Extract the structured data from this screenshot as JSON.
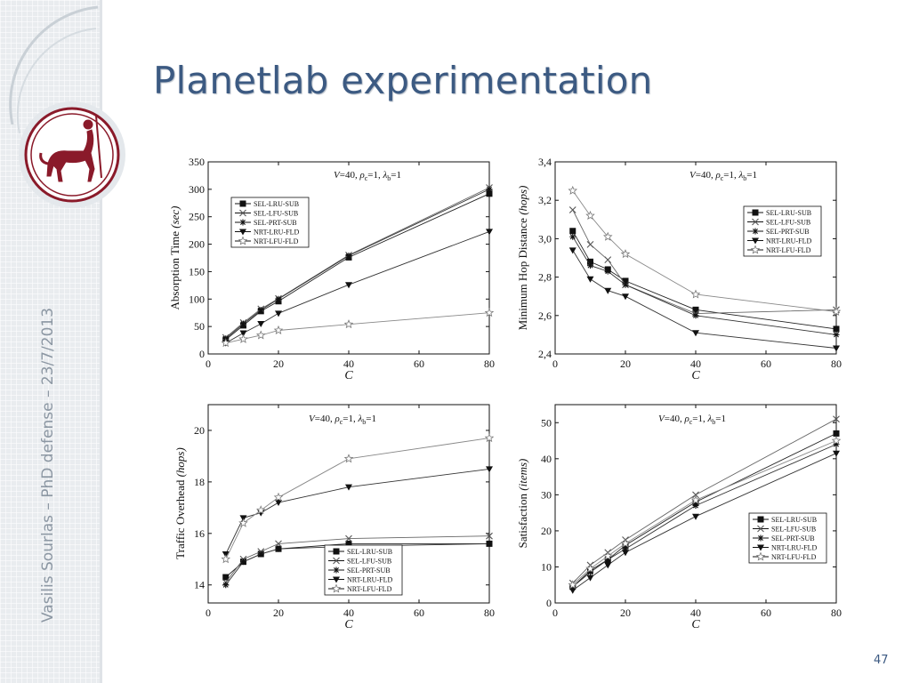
{
  "slide": {
    "title": "Planetlab experimentation",
    "footer": "Vasilis Sourlas – PhD defense – 23/7/2013",
    "page_number": "47"
  },
  "colors": {
    "title": "#3c5a82",
    "footer": "#8c97a3",
    "logo": "#8a1a2a"
  },
  "logo": {
    "icon": "centaur-seal-icon"
  },
  "series_names": [
    "SEL-LRU-SUB",
    "SEL-LFU-SUB",
    "SEL-PRT-SUB",
    "NRT-LRU-FLD",
    "NRT-LFU-FLD"
  ],
  "chart_data": [
    {
      "type": "line",
      "label": "V=40, ρc=1, λb=1",
      "title_text": {
        "v": "V",
        "v_eq": "=40, ",
        "rho": "ρ",
        "rho_sub": "c",
        "rho_eq": "=1, ",
        "lam": "λ",
        "lam_sub": "b",
        "lam_eq": "=1"
      },
      "xlabel": "C",
      "ylabel_main": "Absorption Time",
      "ylabel_unit": "(sec)",
      "x": [
        5,
        10,
        15,
        20,
        40,
        80
      ],
      "xlim": [
        0,
        80
      ],
      "ylim": [
        0,
        350
      ],
      "xticks": [
        "0",
        "20",
        "40",
        "60",
        "80"
      ],
      "yticks": [
        "0",
        "50",
        "100",
        "150",
        "200",
        "250",
        "300",
        "350"
      ],
      "legend_position": "upper-left",
      "series": [
        {
          "name": "SEL-LRU-SUB",
          "values": [
            26,
            52,
            78,
            96,
            176,
            292
          ]
        },
        {
          "name": "SEL-LFU-SUB",
          "values": [
            30,
            57,
            82,
            101,
            180,
            303
          ]
        },
        {
          "name": "SEL-PRT-SUB",
          "values": [
            28,
            55,
            80,
            100,
            179,
            300
          ]
        },
        {
          "name": "NRT-LRU-FLD",
          "values": [
            20,
            38,
            55,
            74,
            126,
            223
          ]
        },
        {
          "name": "NRT-LFU-FLD",
          "values": [
            20,
            27,
            34,
            43,
            54,
            75
          ]
        }
      ]
    },
    {
      "type": "line",
      "label": "V=40, ρc=1, λb=1",
      "title_text": {
        "v": "V",
        "v_eq": "=40, ",
        "rho": "ρ",
        "rho_sub": "c",
        "rho_eq": "=1, ",
        "lam": "λ",
        "lam_sub": "b",
        "lam_eq": "=1"
      },
      "xlabel": "C",
      "ylabel_main": "Minimum Hop Distance",
      "ylabel_unit": "(hops)",
      "x": [
        5,
        10,
        15,
        20,
        40,
        80
      ],
      "xlim": [
        0,
        80
      ],
      "ylim": [
        2.4,
        3.4
      ],
      "xticks": [
        "0",
        "20",
        "40",
        "60",
        "80"
      ],
      "yticks": [
        "2,4",
        "2,6",
        "2,8",
        "3,0",
        "3,2",
        "3,4"
      ],
      "legend_position": "upper-right",
      "series": [
        {
          "name": "SEL-LRU-SUB",
          "values": [
            3.04,
            2.88,
            2.84,
            2.78,
            2.63,
            2.53
          ]
        },
        {
          "name": "SEL-LFU-SUB",
          "values": [
            3.15,
            2.97,
            2.89,
            2.76,
            2.61,
            2.63
          ]
        },
        {
          "name": "SEL-PRT-SUB",
          "values": [
            3.01,
            2.86,
            2.83,
            2.76,
            2.6,
            2.5
          ]
        },
        {
          "name": "NRT-LRU-FLD",
          "values": [
            2.94,
            2.79,
            2.73,
            2.7,
            2.51,
            2.43
          ]
        },
        {
          "name": "NRT-LFU-FLD",
          "values": [
            3.25,
            3.12,
            3.01,
            2.92,
            2.71,
            2.62
          ]
        }
      ]
    },
    {
      "type": "line",
      "label": "V=40, ρc=1, λb=1",
      "title_text": {
        "v": "V",
        "v_eq": "=40, ",
        "rho": "ρ",
        "rho_sub": "c",
        "rho_eq": "=1, ",
        "lam": "λ",
        "lam_sub": "b",
        "lam_eq": "=1"
      },
      "xlabel": "C",
      "ylabel_main": "Traffic Overhead",
      "ylabel_unit": "(hops)",
      "x": [
        5,
        10,
        15,
        20,
        40,
        80
      ],
      "xlim": [
        0,
        80
      ],
      "ylim": [
        13.3,
        21.0
      ],
      "ytick_values": [
        14,
        16,
        18,
        20
      ],
      "xticks": [
        "0",
        "20",
        "40",
        "60",
        "80"
      ],
      "yticks": [
        "14",
        "16",
        "18",
        "20"
      ],
      "legend_position": "lower-right",
      "series": [
        {
          "name": "SEL-LRU-SUB",
          "values": [
            14.3,
            14.9,
            15.2,
            15.4,
            15.6,
            15.6
          ]
        },
        {
          "name": "SEL-LFU-SUB",
          "values": [
            14.1,
            15.0,
            15.3,
            15.6,
            15.8,
            15.9
          ]
        },
        {
          "name": "SEL-PRT-SUB",
          "values": [
            14.0,
            14.9,
            15.2,
            15.4,
            15.5,
            15.6
          ]
        },
        {
          "name": "NRT-LRU-FLD",
          "values": [
            15.2,
            16.6,
            16.8,
            17.2,
            17.8,
            18.5
          ]
        },
        {
          "name": "NRT-LFU-FLD",
          "values": [
            15.0,
            16.4,
            16.9,
            17.4,
            18.9,
            19.7
          ]
        }
      ]
    },
    {
      "type": "line",
      "label": "V=40, ρc=1, λb=1",
      "title_text": {
        "v": "V",
        "v_eq": "=40, ",
        "rho": "ρ",
        "rho_sub": "c",
        "rho_eq": "=1, ",
        "lam": "λ",
        "lam_sub": "b",
        "lam_eq": "=1"
      },
      "xlabel": "C",
      "ylabel_main": "Satisfaction",
      "ylabel_unit": "(items)",
      "x": [
        5,
        10,
        15,
        20,
        40,
        80
      ],
      "xlim": [
        0,
        80
      ],
      "ylim": [
        0,
        55
      ],
      "ytick_values": [
        0,
        10,
        20,
        30,
        40,
        50
      ],
      "xticks": [
        "0",
        "20",
        "40",
        "60",
        "80"
      ],
      "yticks": [
        "0",
        "10",
        "20",
        "30",
        "40",
        "50"
      ],
      "legend_position": "lower-right",
      "series": [
        {
          "name": "SEL-LRU-SUB",
          "values": [
            4.5,
            9,
            12,
            16,
            28,
            47
          ]
        },
        {
          "name": "SEL-LFU-SUB",
          "values": [
            5.5,
            10.5,
            14,
            17.5,
            30,
            51
          ]
        },
        {
          "name": "SEL-PRT-SUB",
          "values": [
            4.5,
            8.5,
            12,
            15,
            27,
            44
          ]
        },
        {
          "name": "NRT-LRU-FLD",
          "values": [
            3.5,
            7,
            10.5,
            14,
            24,
            41.5
          ]
        },
        {
          "name": "NRT-LFU-FLD",
          "values": [
            5,
            9.5,
            13,
            16.5,
            28.5,
            45
          ]
        }
      ]
    }
  ]
}
